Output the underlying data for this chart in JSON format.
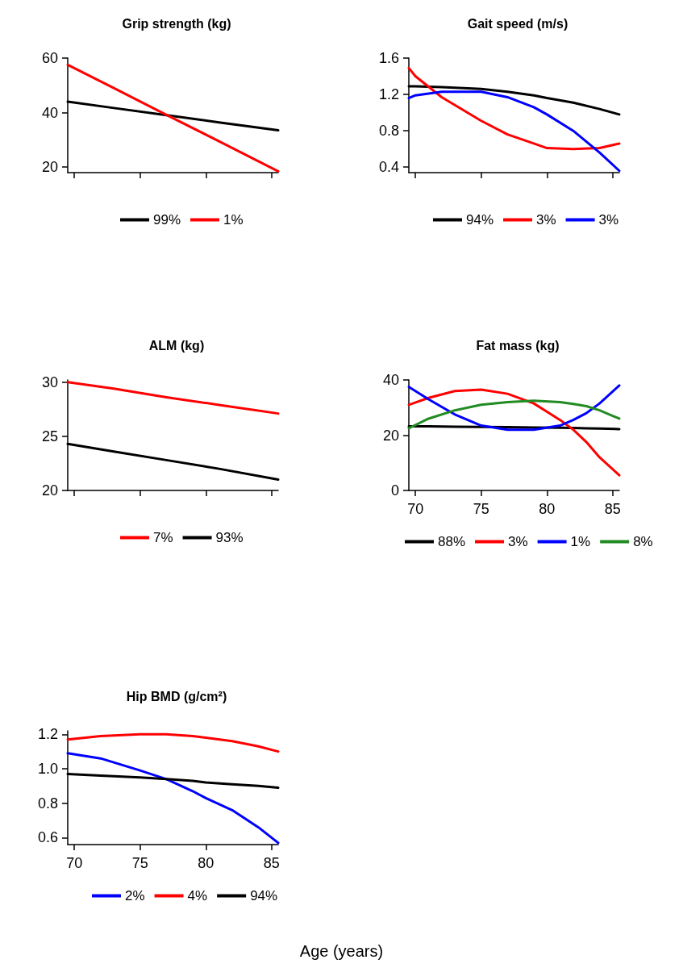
{
  "chart_data": [
    {
      "type": "line",
      "title": "Grip strength (kg)",
      "xlim": [
        69.5,
        85.5
      ],
      "xticks": [
        70,
        75,
        80,
        85
      ],
      "ylim": [
        18,
        60
      ],
      "yticks": [
        20,
        40,
        60
      ],
      "tick_labels": "y",
      "grid": false,
      "legend": "bottom",
      "marker": "none",
      "line_style": "solid",
      "x": [
        69.5,
        73,
        77,
        81,
        85.5
      ],
      "series": [
        {
          "name": "99%",
          "color": "#000000",
          "values": [
            44,
            41.7,
            39.1,
            36.4,
            33.5
          ]
        },
        {
          "name": "1%",
          "color": "#ff0000",
          "values": [
            57.5,
            49,
            39.2,
            29.5,
            18.5
          ]
        }
      ]
    },
    {
      "type": "line",
      "title": "Gait speed (m/s)",
      "xlim": [
        69.5,
        85.5
      ],
      "xticks": [
        70,
        75,
        80,
        85
      ],
      "ylim": [
        0.34,
        1.6
      ],
      "yticks": [
        0.4,
        0.8,
        1.2,
        1.6
      ],
      "tick_labels": "y",
      "grid": false,
      "legend": "bottom",
      "marker": "none",
      "line_style": "solid",
      "x": [
        69.5,
        70,
        72,
        75,
        77,
        79,
        80,
        82,
        84,
        85.5
      ],
      "series": [
        {
          "name": "94%",
          "color": "#000000",
          "values": [
            1.29,
            1.29,
            1.28,
            1.26,
            1.23,
            1.19,
            1.16,
            1.11,
            1.04,
            0.98
          ]
        },
        {
          "name": "3%",
          "color": "#ff0000",
          "values": [
            1.49,
            1.4,
            1.17,
            0.91,
            0.76,
            0.66,
            0.61,
            0.6,
            0.61,
            0.66
          ]
        },
        {
          "name": "3%",
          "color": "#0000ff",
          "values": [
            1.16,
            1.19,
            1.23,
            1.23,
            1.17,
            1.06,
            0.98,
            0.8,
            0.56,
            0.36
          ]
        }
      ]
    },
    {
      "type": "line",
      "title": "ALM (kg)",
      "xlim": [
        69.5,
        85.5
      ],
      "xticks": [
        70,
        75,
        80,
        85
      ],
      "ylim": [
        20,
        30.2
      ],
      "yticks": [
        20,
        25,
        30
      ],
      "tick_labels": "y",
      "grid": false,
      "legend": "bottom",
      "marker": "none",
      "line_style": "solid",
      "x": [
        69.5,
        73,
        77,
        81,
        85.5
      ],
      "series": [
        {
          "name": "7%",
          "color": "#ff0000",
          "values": [
            30,
            29.4,
            28.6,
            27.9,
            27.1
          ]
        },
        {
          "name": "93%",
          "color": "#000000",
          "values": [
            24.3,
            23.6,
            22.8,
            22,
            21
          ]
        }
      ]
    },
    {
      "type": "line",
      "title": "Fat mass (kg)",
      "xlim": [
        69.5,
        85.5
      ],
      "xticks": [
        70,
        75,
        80,
        85
      ],
      "ylim": [
        0,
        40
      ],
      "yticks": [
        0,
        20,
        40
      ],
      "grid": false,
      "legend": "bottom",
      "marker": "none",
      "line_style": "solid",
      "x": [
        69.5,
        71,
        73,
        75,
        77,
        79,
        81,
        82,
        83,
        84,
        85.5
      ],
      "series": [
        {
          "name": "88%",
          "color": "#000000",
          "values": [
            23.2,
            23.2,
            23.1,
            23,
            22.9,
            22.8,
            22.7,
            22.6,
            22.5,
            22.4,
            22.2
          ]
        },
        {
          "name": "3%",
          "color": "#ff0000",
          "values": [
            31,
            33.5,
            36,
            36.5,
            35,
            31.5,
            25.5,
            22,
            17.5,
            12,
            5.5
          ]
        },
        {
          "name": "1%",
          "color": "#0000ff",
          "values": [
            37.5,
            33,
            27.5,
            23.5,
            22,
            22,
            23.5,
            25.5,
            28,
            31.5,
            38
          ]
        },
        {
          "name": "8%",
          "color": "#228b22",
          "values": [
            22.5,
            26,
            29,
            31,
            32,
            32.5,
            32,
            31.3,
            30.5,
            29,
            26
          ]
        }
      ]
    },
    {
      "type": "line",
      "title": "Hip BMD (g/cm²)",
      "xlabel": "Age (years)",
      "xlim": [
        69.5,
        85.5
      ],
      "xticks": [
        70,
        75,
        80,
        85
      ],
      "ylim": [
        0.56,
        1.22
      ],
      "yticks": [
        0.6,
        0.8,
        {
          "value": 1,
          "label": "1.0"
        },
        1.2
      ],
      "grid": false,
      "legend": "bottom",
      "marker": "none",
      "line_style": "solid",
      "x": [
        69.5,
        72,
        75,
        77,
        79,
        80,
        82,
        84,
        85.5
      ],
      "series": [
        {
          "name": "2%",
          "color": "#0000ff",
          "values": [
            1.09,
            1.06,
            0.99,
            0.94,
            0.87,
            0.83,
            0.76,
            0.66,
            0.57
          ]
        },
        {
          "name": "4%",
          "color": "#ff0000",
          "values": [
            1.17,
            1.19,
            1.2,
            1.2,
            1.19,
            1.18,
            1.16,
            1.13,
            1.1
          ]
        },
        {
          "name": "94%",
          "color": "#000000",
          "values": [
            0.97,
            0.96,
            0.95,
            0.94,
            0.93,
            0.92,
            0.91,
            0.9,
            0.89
          ]
        }
      ]
    }
  ]
}
